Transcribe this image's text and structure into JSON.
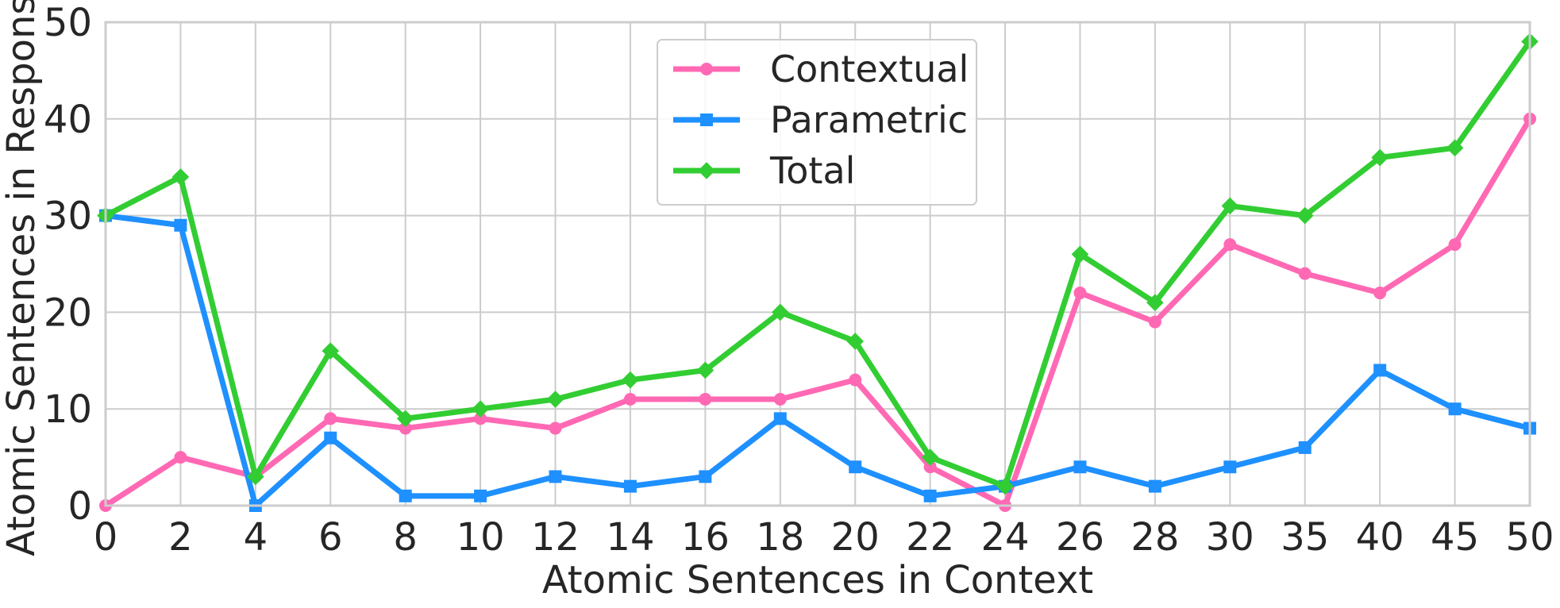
{
  "chart_data": {
    "type": "line",
    "xlabel": "Atomic Sentences in Context",
    "ylabel": "Atomic Sentences in Response",
    "categories": [
      "0",
      "2",
      "4",
      "6",
      "8",
      "10",
      "12",
      "14",
      "16",
      "18",
      "20",
      "22",
      "24",
      "26",
      "28",
      "30",
      "35",
      "40",
      "45",
      "50"
    ],
    "ylim": [
      0,
      50
    ],
    "yticks": [
      0,
      10,
      20,
      30,
      40,
      50
    ],
    "grid": true,
    "legend_position": "top-center",
    "series": [
      {
        "name": "Contextual",
        "color": "#ff69b4",
        "marker": "circle",
        "values": [
          0,
          5,
          3,
          9,
          8,
          9,
          8,
          11,
          11,
          11,
          13,
          4,
          0,
          22,
          19,
          27,
          24,
          22,
          27,
          40
        ]
      },
      {
        "name": "Parametric",
        "color": "#1e90ff",
        "marker": "square",
        "values": [
          30,
          29,
          0,
          7,
          1,
          1,
          3,
          2,
          3,
          9,
          4,
          1,
          2,
          4,
          2,
          4,
          6,
          14,
          10,
          8
        ]
      },
      {
        "name": "Total",
        "color": "#32cd32",
        "marker": "diamond",
        "values": [
          30,
          34,
          3,
          16,
          9,
          10,
          11,
          13,
          14,
          20,
          17,
          5,
          2,
          26,
          21,
          31,
          30,
          36,
          37,
          48
        ]
      }
    ]
  }
}
